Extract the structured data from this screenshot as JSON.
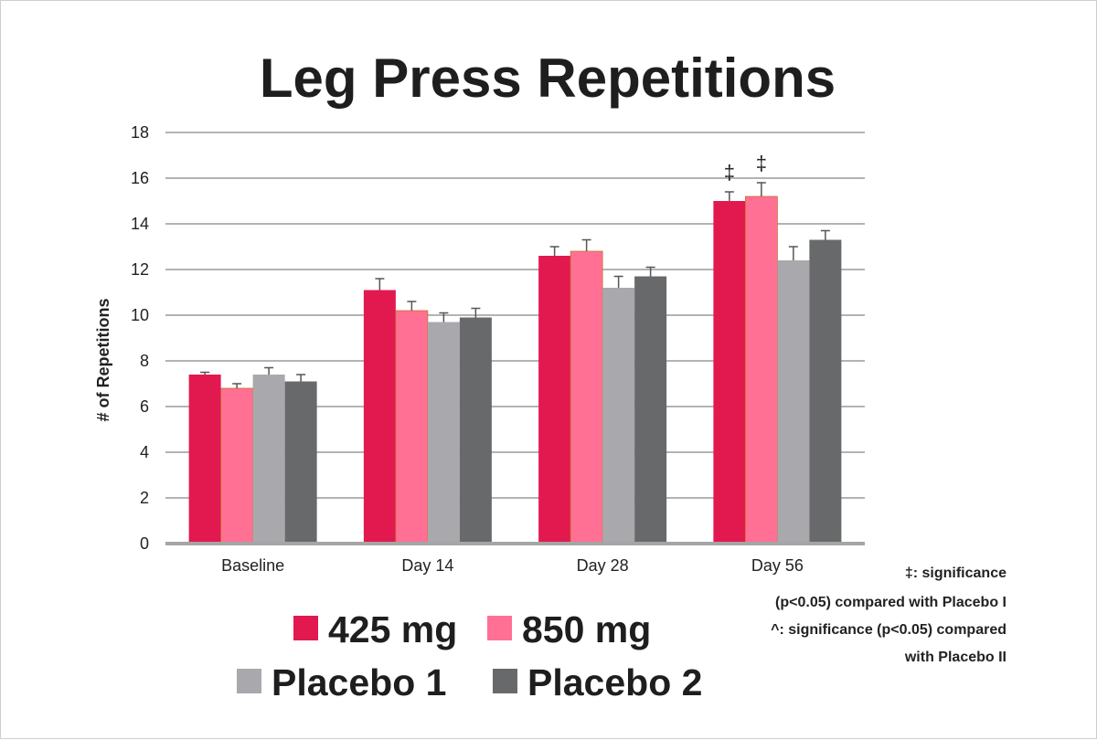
{
  "chart_data": {
    "type": "bar",
    "title": "Leg Press Repetitions",
    "ylabel": "# of Repetitions",
    "xlabel": "",
    "ylim": [
      0,
      18
    ],
    "yticks": [
      0,
      2,
      4,
      6,
      8,
      10,
      12,
      14,
      16,
      18
    ],
    "grid": true,
    "legend_position": "bottom",
    "categories": [
      "Baseline",
      "Day 14",
      "Day 28",
      "Day 56"
    ],
    "series": [
      {
        "name": "425 mg",
        "color": "#e2194f",
        "values": [
          7.4,
          11.1,
          12.6,
          15.0
        ],
        "errors": [
          0.1,
          0.5,
          0.4,
          0.4
        ]
      },
      {
        "name": "850 mg",
        "color": "#ff7094",
        "values": [
          6.8,
          10.2,
          12.8,
          15.2
        ],
        "errors": [
          0.2,
          0.4,
          0.5,
          0.6
        ]
      },
      {
        "name": "Placebo 1",
        "color": "#a9a9ad",
        "values": [
          7.4,
          9.7,
          11.2,
          12.4
        ],
        "errors": [
          0.3,
          0.4,
          0.5,
          0.6
        ]
      },
      {
        "name": "Placebo 2",
        "color": "#68696b",
        "values": [
          7.1,
          9.9,
          11.7,
          13.3
        ],
        "errors": [
          0.3,
          0.4,
          0.4,
          0.4
        ]
      }
    ],
    "annotations": [
      {
        "text": "‡",
        "category_index": 3,
        "series_index": 0
      },
      {
        "text": "‡",
        "category_index": 3,
        "series_index": 1
      }
    ],
    "notes": [
      "‡: significance",
      "(p<0.05) compared with Placebo I",
      "^: significance (p<0.05) compared",
      "with Placebo II"
    ]
  },
  "colors": {
    "gridline": "#9a9a9a",
    "axis": "#a5a5a5",
    "bar_outline": "#c9722a"
  }
}
